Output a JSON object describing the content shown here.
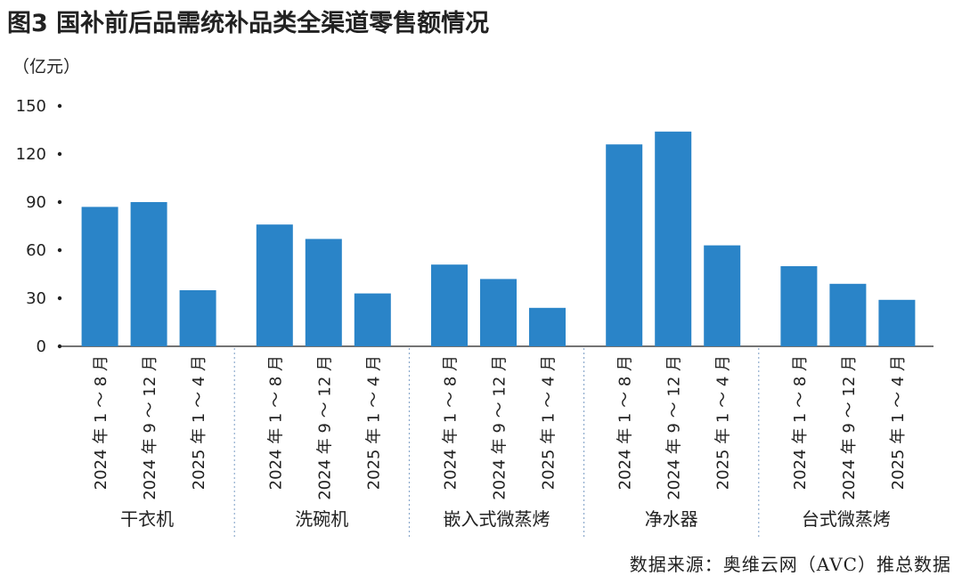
{
  "chart_data": {
    "type": "bar",
    "title": "图3 国补前后品需统补品类全渠道零售额情况",
    "ylabel": "（亿元）",
    "ylim": [
      0,
      150
    ],
    "yticks": [
      "0",
      "30",
      "60",
      "90",
      "120",
      "150"
    ],
    "categories": [
      "干衣机",
      "洗碗机",
      "嵌入式微蒸烤",
      "净水器",
      "台式微蒸烤"
    ],
    "periods": [
      "2024 年 1 ～ 8 月",
      "2024 年 9 ～ 12 月",
      "2025 年 1 ～ 4 月"
    ],
    "groups": [
      {
        "category": "干衣机",
        "values": [
          87,
          90,
          35
        ]
      },
      {
        "category": "洗碗机",
        "values": [
          76,
          67,
          33
        ]
      },
      {
        "category": "嵌入式微蒸烤",
        "values": [
          51,
          42,
          24
        ]
      },
      {
        "category": "净水器",
        "values": [
          126,
          134,
          63
        ]
      },
      {
        "category": "台式微蒸烤",
        "values": [
          50,
          39,
          29
        ]
      }
    ],
    "bar_color": "#2a84c8",
    "grid": false,
    "legend": "none"
  },
  "source": "数据来源：奥维云网（AVC）推总数据"
}
